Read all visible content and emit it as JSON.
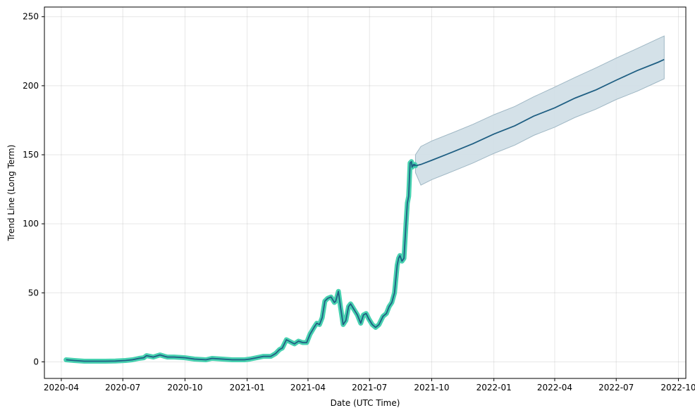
{
  "chart_data": {
    "type": "line",
    "title": "",
    "xlabel": "Date (UTC Time)",
    "ylabel": "Trend Line (Long Term)",
    "xlim": [
      "2020-03-07",
      "2022-10-12"
    ],
    "ylim": [
      -12,
      257
    ],
    "grid": true,
    "legend": "none",
    "x_ticks": [
      "2020-04",
      "2020-07",
      "2020-10",
      "2021-01",
      "2021-04",
      "2021-07",
      "2021-10",
      "2022-01",
      "2022-04",
      "2022-07",
      "2022-10"
    ],
    "y_ticks": [
      0,
      50,
      100,
      150,
      200,
      250
    ],
    "colors": {
      "actual": "#48d1b0",
      "trend": "#1f5f83",
      "band": "#cfdee6"
    },
    "actual": {
      "x": [
        "2020-04-08",
        "2020-04-20",
        "2020-05-05",
        "2020-05-20",
        "2020-06-05",
        "2020-06-20",
        "2020-07-05",
        "2020-07-15",
        "2020-07-25",
        "2020-08-01",
        "2020-08-05",
        "2020-08-15",
        "2020-08-25",
        "2020-09-01",
        "2020-09-05",
        "2020-09-15",
        "2020-10-01",
        "2020-10-15",
        "2020-11-01",
        "2020-11-10",
        "2020-11-25",
        "2020-12-10",
        "2020-12-28",
        "2021-01-05",
        "2021-01-15",
        "2021-01-25",
        "2021-02-05",
        "2021-02-12",
        "2021-02-18",
        "2021-02-22",
        "2021-02-28",
        "2021-03-08",
        "2021-03-12",
        "2021-03-18",
        "2021-03-24",
        "2021-03-30",
        "2021-04-04",
        "2021-04-10",
        "2021-04-14",
        "2021-04-18",
        "2021-04-22",
        "2021-04-26",
        "2021-04-30",
        "2021-05-05",
        "2021-05-10",
        "2021-05-12",
        "2021-05-16",
        "2021-05-19",
        "2021-05-23",
        "2021-05-27",
        "2021-05-31",
        "2021-06-03",
        "2021-06-08",
        "2021-06-13",
        "2021-06-18",
        "2021-06-22",
        "2021-06-26",
        "2021-06-30",
        "2021-07-05",
        "2021-07-10",
        "2021-07-15",
        "2021-07-18",
        "2021-07-21",
        "2021-07-26",
        "2021-07-30",
        "2021-08-03",
        "2021-08-07",
        "2021-08-11",
        "2021-08-13",
        "2021-08-15",
        "2021-08-18",
        "2021-08-21",
        "2021-08-24",
        "2021-08-26",
        "2021-08-28",
        "2021-08-30",
        "2021-09-01",
        "2021-09-02",
        "2021-09-03",
        "2021-09-04",
        "2021-09-05",
        "2021-09-06",
        "2021-09-07"
      ],
      "y": [
        1.5,
        1,
        0.5,
        0.5,
        0.5,
        0.6,
        1,
        1.5,
        2.5,
        3,
        4.5,
        3.5,
        5,
        4,
        3.5,
        3.5,
        3,
        2,
        1.5,
        2.5,
        2,
        1.5,
        1.5,
        2,
        3,
        4,
        4,
        6,
        9,
        10,
        16,
        14,
        13,
        15,
        14,
        14,
        20,
        25,
        28,
        27,
        32,
        44,
        46,
        47,
        43,
        44,
        51,
        40,
        27,
        30,
        40,
        42,
        38,
        34,
        28,
        34,
        35,
        31,
        27,
        25,
        27,
        30,
        33,
        35,
        40,
        43,
        50,
        70,
        75,
        77,
        73,
        75,
        100,
        115,
        120,
        144,
        145,
        141,
        142,
        143,
        142,
        143,
        142
      ]
    },
    "forecast": {
      "x": [
        "2021-09-07",
        "2021-09-15",
        "2021-10-01",
        "2021-11-01",
        "2021-12-01",
        "2022-01-01",
        "2022-02-01",
        "2022-03-01",
        "2022-04-01",
        "2022-05-01",
        "2022-06-01",
        "2022-07-01",
        "2022-08-01",
        "2022-09-01",
        "2022-09-10"
      ],
      "y": [
        142,
        143,
        146,
        152,
        158,
        165,
        171,
        178,
        184,
        191,
        197,
        204,
        211,
        217,
        219
      ],
      "upper": [
        150,
        156,
        160,
        166,
        172,
        179,
        185,
        192,
        199,
        206,
        213,
        220,
        227,
        234,
        236
      ],
      "lower": [
        137,
        128,
        132,
        138,
        144,
        151,
        157,
        164,
        170,
        177,
        183,
        190,
        196,
        203,
        205
      ]
    }
  }
}
